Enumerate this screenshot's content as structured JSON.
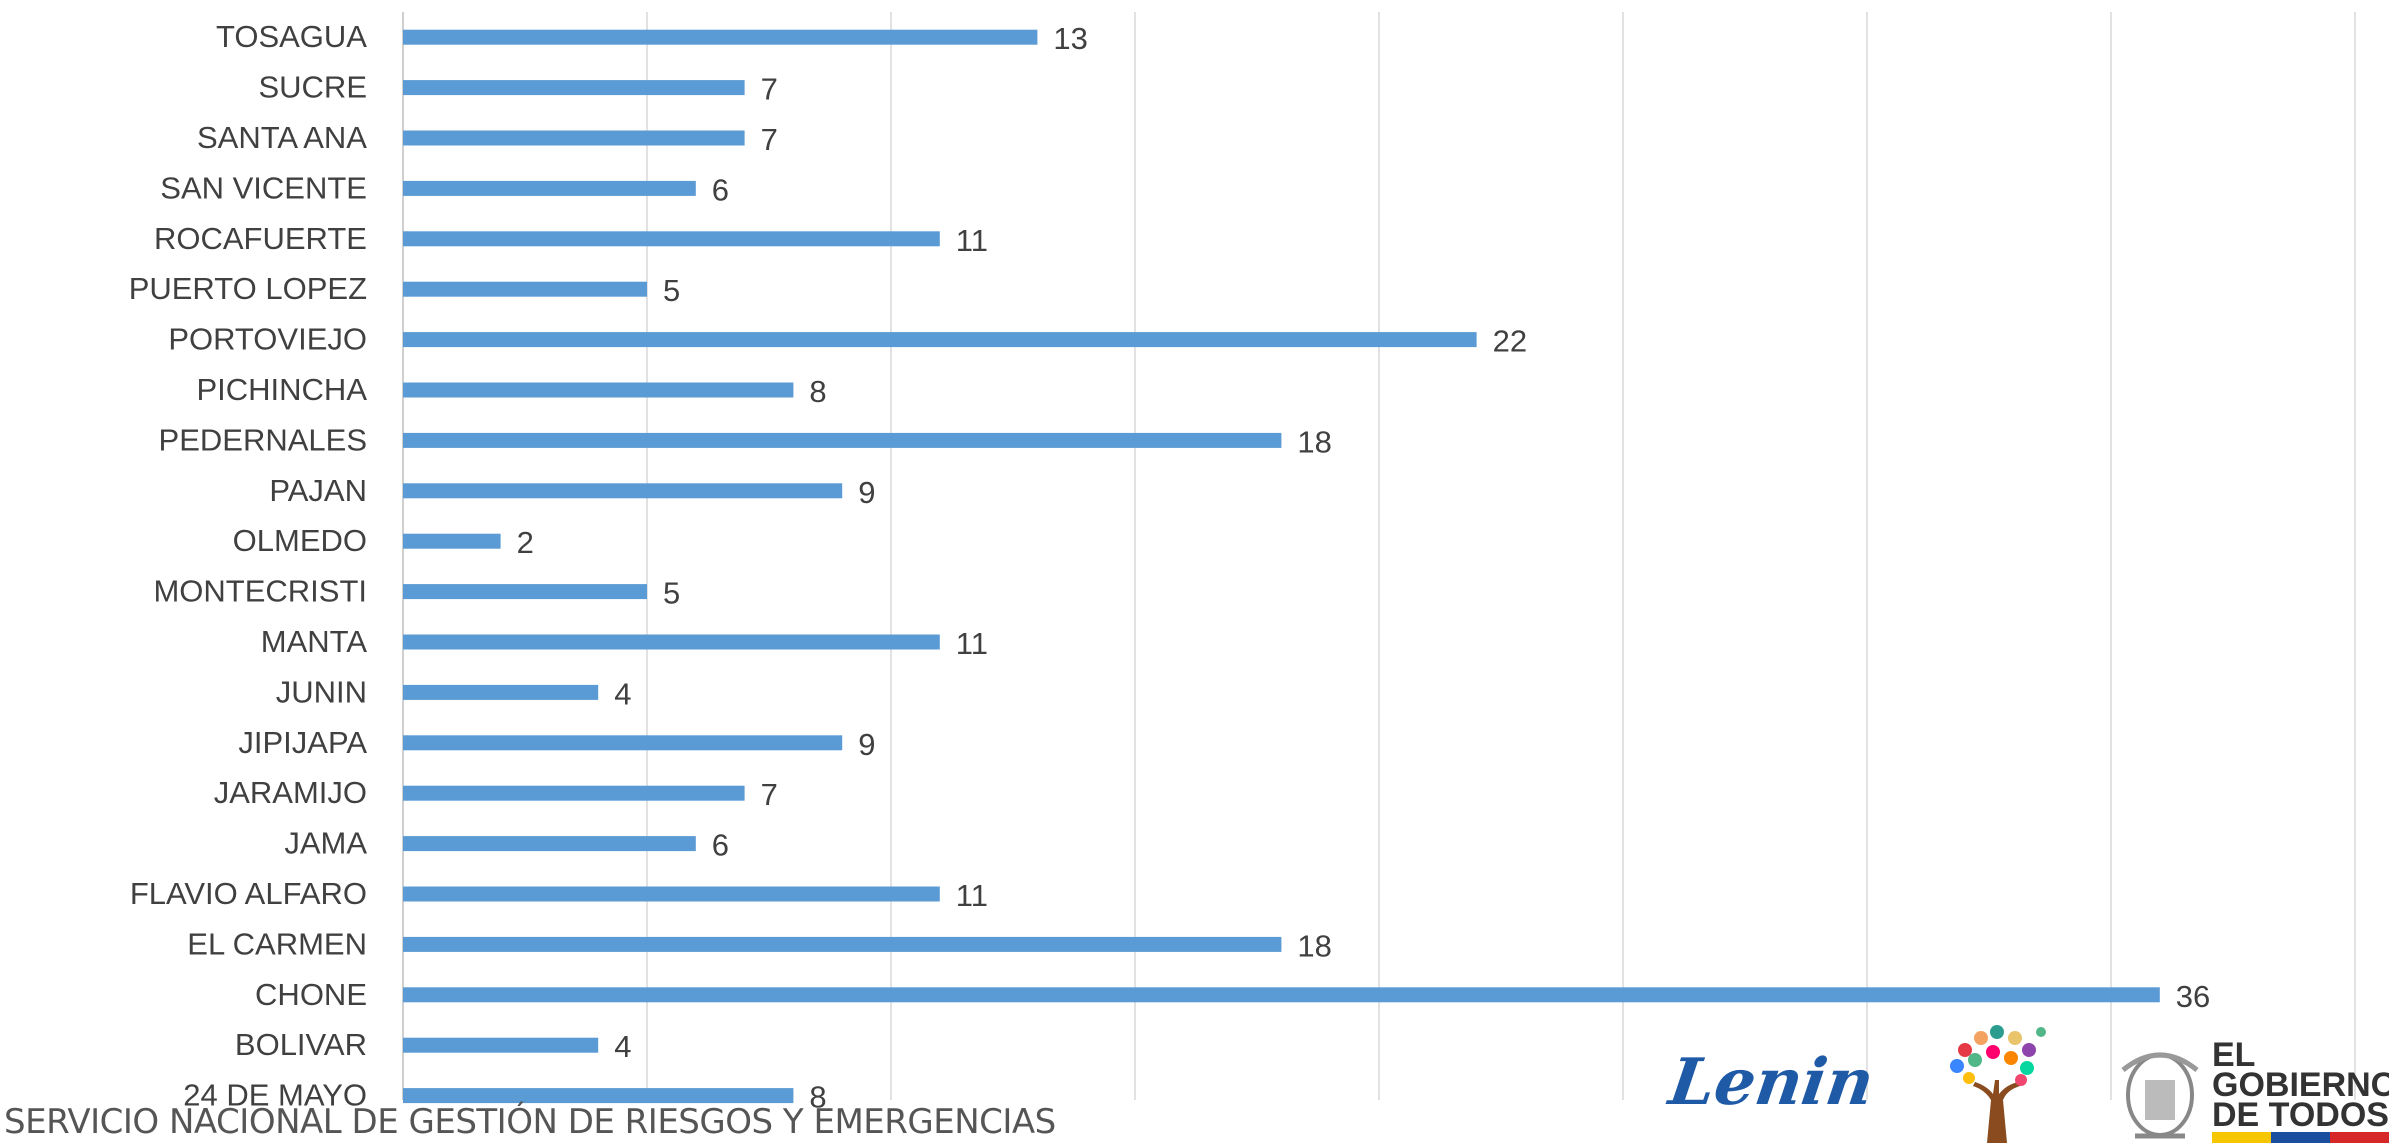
{
  "chart_data": {
    "type": "bar",
    "orientation": "horizontal",
    "categories": [
      "TOSAGUA",
      "SUCRE",
      "SANTA ANA",
      "SAN VICENTE",
      "ROCAFUERTE",
      "PUERTO LOPEZ",
      "PORTOVIEJO",
      "PICHINCHA",
      "PEDERNALES",
      "PAJAN",
      "OLMEDO",
      "MONTECRISTI",
      "MANTA",
      "JUNIN",
      "JIPIJAPA",
      "JARAMIJO",
      "JAMA",
      "FLAVIO ALFARO",
      "EL CARMEN",
      "CHONE",
      "BOLIVAR",
      "24 DE MAYO"
    ],
    "values": [
      13,
      7,
      7,
      6,
      11,
      5,
      22,
      8,
      18,
      9,
      2,
      5,
      11,
      4,
      9,
      7,
      6,
      11,
      18,
      36,
      4,
      8
    ],
    "xlim": [
      0,
      40
    ],
    "grid": true,
    "data_labels": true,
    "bar_color": "#5b9bd5"
  },
  "footer": {
    "agency": "SERVICIO NACIONAL DE GESTIÓN DE RIESGOS Y EMERGENCIAS"
  },
  "logos": {
    "lenin": "Lenin",
    "government": [
      "EL",
      "GOBIERNO",
      "DE TODOS"
    ]
  },
  "colors": {
    "bar": "#5b9bd5",
    "grid": "#d9d9d9",
    "label": "#404040",
    "flag": [
      "#f6c700",
      "#1a4fa0",
      "#d62828"
    ]
  }
}
